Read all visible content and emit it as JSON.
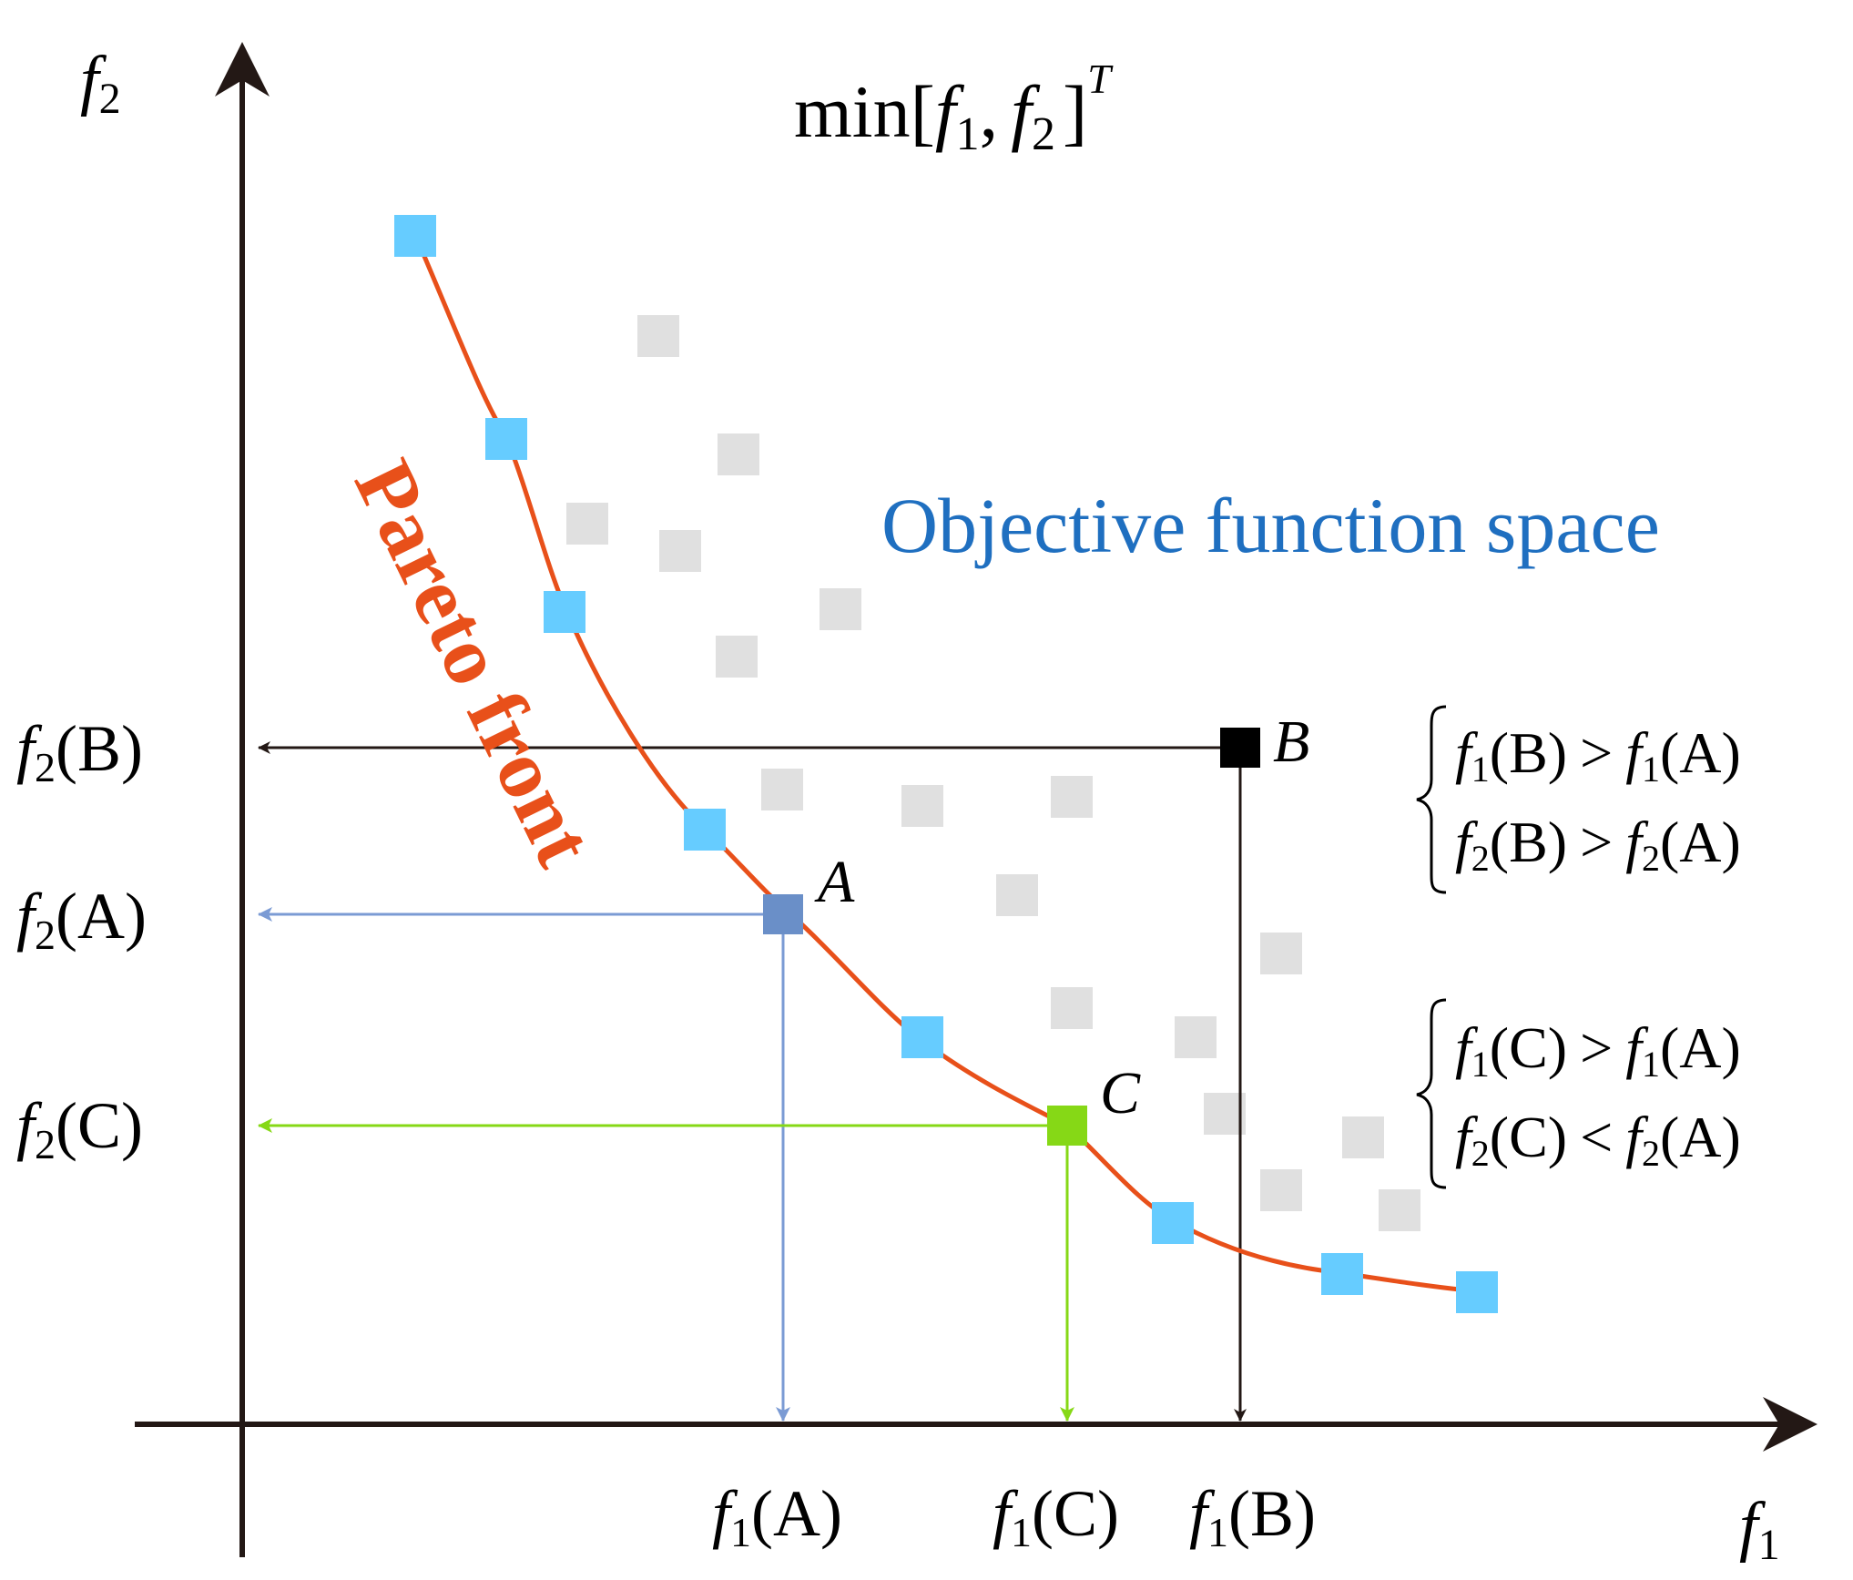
{
  "title": {
    "prefix": "min[",
    "f1": "f",
    "s1": "1",
    "comma": ",",
    "f2": "f",
    "s2": "2",
    "close": "]",
    "sup": "T"
  },
  "space_label": "Objective function space",
  "front_label": "Pareto front",
  "axes": {
    "x": {
      "f": "f",
      "sub": "1"
    },
    "y": {
      "f": "f",
      "sub": "2"
    }
  },
  "points": {
    "A": "A",
    "B": "B",
    "C": "C"
  },
  "y_labels": {
    "B": {
      "f": "f",
      "sub": "2",
      "arg": "(B)"
    },
    "A": {
      "f": "f",
      "sub": "2",
      "arg": "(A)"
    },
    "C": {
      "f": "f",
      "sub": "2",
      "arg": "(C)"
    }
  },
  "x_labels": {
    "A": {
      "f": "f",
      "sub": "1",
      "arg": "(A)"
    },
    "C": {
      "f": "f",
      "sub": "1",
      "arg": "(C)"
    },
    "B": {
      "f": "f",
      "sub": "1",
      "arg": "(B)"
    }
  },
  "conditions": {
    "B": [
      {
        "l_f": "f",
        "l_sub": "1",
        "l_arg": "(B)",
        "op": ">",
        "r_f": "f",
        "r_sub": "1",
        "r_arg": "(A)"
      },
      {
        "l_f": "f",
        "l_sub": "2",
        "l_arg": "(B)",
        "op": ">",
        "r_f": "f",
        "r_sub": "2",
        "r_arg": "(A)"
      }
    ],
    "C": [
      {
        "l_f": "f",
        "l_sub": "1",
        "l_arg": "(C)",
        "op": ">",
        "r_f": "f",
        "r_sub": "1",
        "r_arg": "(A)"
      },
      {
        "l_f": "f",
        "l_sub": "2",
        "l_arg": "(C)",
        "op": "<",
        "r_f": "f",
        "r_sub": "2",
        "r_arg": "(A)"
      }
    ]
  },
  "colors": {
    "axis": "#231815",
    "front": "#e8501a",
    "front_point": "#66ccff",
    "point_A": "#6a8fc8",
    "point_B": "#000000",
    "point_C": "#86d816",
    "arrow_A": "#7b9bd4",
    "arrow_C": "#86d816",
    "dominated": "#e0e0e0",
    "space_label": "#1f6fc0"
  }
}
